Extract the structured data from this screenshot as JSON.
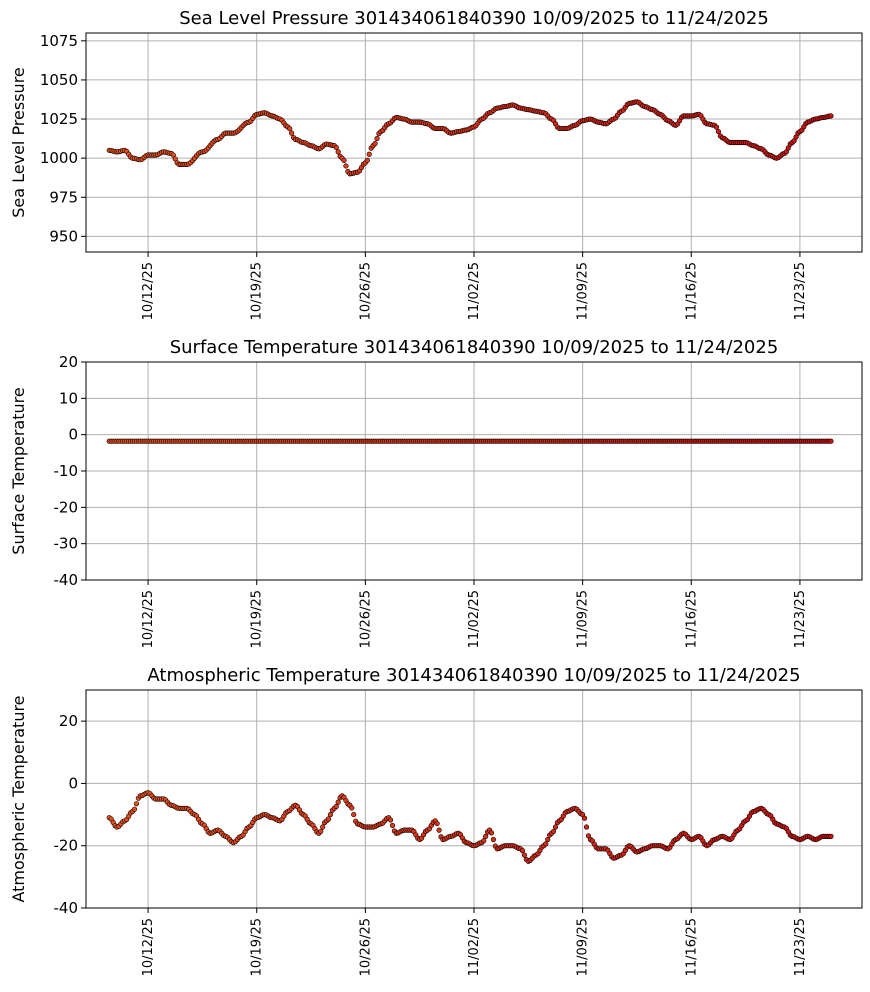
{
  "chart_data": [
    {
      "type": "scatter",
      "title": "Sea Level Pressure 301434061840390  10/09/2025 to 11/24/2025",
      "xlabel": "",
      "ylabel": "Sea Level Pressure",
      "ylim": [
        940,
        1080
      ],
      "yticks": [
        950,
        975,
        1000,
        1025,
        1050,
        1075
      ],
      "xlim": [
        "2025-10-08",
        "2025-11-27"
      ],
      "xticks": [
        "2025-10-12",
        "2025-10-19",
        "2025-10-26",
        "2025-11-02",
        "2025-11-09",
        "2025-11-16",
        "2025-11-23"
      ],
      "xtick_labels": [
        "10/12/25",
        "10/19/25",
        "10/26/25",
        "11/02/25",
        "11/09/25",
        "11/16/25",
        "11/23/25"
      ],
      "grid": true,
      "x_start": "2025-10-09T12:00",
      "x_end": "2025-11-25T00:00",
      "keyframes": [
        [
          "2025-10-09T12:00",
          1005
        ],
        [
          "2025-10-10T00:00",
          1004
        ],
        [
          "2025-10-10T12:00",
          1005
        ],
        [
          "2025-10-11T00:00",
          1000
        ],
        [
          "2025-10-11T12:00",
          999
        ],
        [
          "2025-10-12T00:00",
          1002
        ],
        [
          "2025-10-12T12:00",
          1002
        ],
        [
          "2025-10-13T00:00",
          1004
        ],
        [
          "2025-10-13T12:00",
          1003
        ],
        [
          "2025-10-14T00:00",
          996
        ],
        [
          "2025-10-14T12:00",
          996
        ],
        [
          "2025-10-15T12:00",
          1004
        ],
        [
          "2025-10-16T12:00",
          1012
        ],
        [
          "2025-10-17T00:00",
          1016
        ],
        [
          "2025-10-17T12:00",
          1016
        ],
        [
          "2025-10-18T12:00",
          1023
        ],
        [
          "2025-10-19T00:00",
          1028
        ],
        [
          "2025-10-19T12:00",
          1029
        ],
        [
          "2025-10-20T00:00",
          1027
        ],
        [
          "2025-10-20T12:00",
          1025
        ],
        [
          "2025-10-21T00:00",
          1020
        ],
        [
          "2025-10-21T12:00",
          1012
        ],
        [
          "2025-10-22T00:00",
          1010
        ],
        [
          "2025-10-22T12:00",
          1008
        ],
        [
          "2025-10-23T00:00",
          1006
        ],
        [
          "2025-10-23T12:00",
          1009
        ],
        [
          "2025-10-24T00:00",
          1008
        ],
        [
          "2025-10-24T12:00",
          1000
        ],
        [
          "2025-10-25T00:00",
          990
        ],
        [
          "2025-10-25T12:00",
          991
        ],
        [
          "2025-10-26T00:00",
          997
        ],
        [
          "2025-10-26T12:00",
          1008
        ],
        [
          "2025-10-27T00:00",
          1017
        ],
        [
          "2025-10-27T12:00",
          1022
        ],
        [
          "2025-10-28T00:00",
          1026
        ],
        [
          "2025-10-28T12:00",
          1025
        ],
        [
          "2025-10-29T00:00",
          1023
        ],
        [
          "2025-10-29T12:00",
          1023
        ],
        [
          "2025-10-30T00:00",
          1022
        ],
        [
          "2025-10-30T12:00",
          1019
        ],
        [
          "2025-10-31T00:00",
          1019
        ],
        [
          "2025-10-31T12:00",
          1016
        ],
        [
          "2025-11-01T00:00",
          1017
        ],
        [
          "2025-11-01T12:00",
          1018
        ],
        [
          "2025-11-02T00:00",
          1020
        ],
        [
          "2025-11-02T12:00",
          1025
        ],
        [
          "2025-11-03T00:00",
          1029
        ],
        [
          "2025-11-03T12:00",
          1032
        ],
        [
          "2025-11-04T00:00",
          1033
        ],
        [
          "2025-11-04T12:00",
          1034
        ],
        [
          "2025-11-05T00:00",
          1032
        ],
        [
          "2025-11-05T12:00",
          1031
        ],
        [
          "2025-11-06T00:00",
          1030
        ],
        [
          "2025-11-06T12:00",
          1029
        ],
        [
          "2025-11-07T00:00",
          1025
        ],
        [
          "2025-11-07T12:00",
          1019
        ],
        [
          "2025-11-08T00:00",
          1019
        ],
        [
          "2025-11-08T12:00",
          1021
        ],
        [
          "2025-11-09T00:00",
          1024
        ],
        [
          "2025-11-09T12:00",
          1025
        ],
        [
          "2025-11-10T00:00",
          1023
        ],
        [
          "2025-11-10T12:00",
          1022
        ],
        [
          "2025-11-11T00:00",
          1025
        ],
        [
          "2025-11-11T12:00",
          1030
        ],
        [
          "2025-11-12T00:00",
          1035
        ],
        [
          "2025-11-12T12:00",
          1036
        ],
        [
          "2025-11-13T00:00",
          1033
        ],
        [
          "2025-11-13T12:00",
          1031
        ],
        [
          "2025-11-14T00:00",
          1028
        ],
        [
          "2025-11-14T12:00",
          1024
        ],
        [
          "2025-11-15T00:00",
          1021
        ],
        [
          "2025-11-15T12:00",
          1027
        ],
        [
          "2025-11-16T00:00",
          1027
        ],
        [
          "2025-11-16T12:00",
          1028
        ],
        [
          "2025-11-17T00:00",
          1022
        ],
        [
          "2025-11-17T12:00",
          1021
        ],
        [
          "2025-11-18T00:00",
          1013
        ],
        [
          "2025-11-18T12:00",
          1010
        ],
        [
          "2025-11-19T00:00",
          1010
        ],
        [
          "2025-11-19T12:00",
          1010
        ],
        [
          "2025-11-20T00:00",
          1008
        ],
        [
          "2025-11-20T12:00",
          1006
        ],
        [
          "2025-11-21T00:00",
          1002
        ],
        [
          "2025-11-21T12:00",
          1000
        ],
        [
          "2025-11-22T00:00",
          1003
        ],
        [
          "2025-11-22T12:00",
          1010
        ],
        [
          "2025-11-23T00:00",
          1017
        ],
        [
          "2025-11-23T12:00",
          1023
        ],
        [
          "2025-11-24T00:00",
          1025
        ],
        [
          "2025-11-24T12:00",
          1026
        ],
        [
          "2025-11-25T00:00",
          1027
        ]
      ],
      "marker_fill_start": "#e8521e",
      "marker_fill_end": "#cc1111",
      "marker_edge": "#000000"
    },
    {
      "type": "scatter",
      "title": "Surface Temperature 301434061840390  10/09/2025 to 11/24/2025",
      "xlabel": "",
      "ylabel": "Surface Temperature",
      "ylim": [
        -40,
        20
      ],
      "yticks": [
        -40,
        -30,
        -20,
        -10,
        0,
        10,
        20
      ],
      "xlim": [
        "2025-10-08",
        "2025-11-27"
      ],
      "xticks": [
        "2025-10-12",
        "2025-10-19",
        "2025-10-26",
        "2025-11-02",
        "2025-11-09",
        "2025-11-16",
        "2025-11-23"
      ],
      "xtick_labels": [
        "10/12/25",
        "10/19/25",
        "10/26/25",
        "11/02/25",
        "11/09/25",
        "11/16/25",
        "11/23/25"
      ],
      "grid": true,
      "x_start": "2025-10-09T12:00",
      "x_end": "2025-11-25T00:00",
      "keyframes": [
        [
          "2025-10-09T12:00",
          -1.8
        ],
        [
          "2025-11-25T00:00",
          -1.8
        ]
      ],
      "marker_fill_start": "#e8521e",
      "marker_fill_end": "#cc1111",
      "marker_edge": "#000000"
    },
    {
      "type": "scatter",
      "title": "Atmospheric Temperature 301434061840390  10/09/2025 to 11/24/2025",
      "xlabel": "",
      "ylabel": "Atmospheric Temperature",
      "ylim": [
        -40,
        30
      ],
      "yticks": [
        -40,
        -20,
        0,
        20
      ],
      "xlim": [
        "2025-10-08",
        "2025-11-27"
      ],
      "xticks": [
        "2025-10-12",
        "2025-10-19",
        "2025-10-26",
        "2025-11-02",
        "2025-11-09",
        "2025-11-16",
        "2025-11-23"
      ],
      "xtick_labels": [
        "10/12/25",
        "10/19/25",
        "10/26/25",
        "11/02/25",
        "11/09/25",
        "11/16/25",
        "11/23/25"
      ],
      "grid": true,
      "x_start": "2025-10-09T12:00",
      "x_end": "2025-11-25T00:00",
      "keyframes": [
        [
          "2025-10-09T12:00",
          -11
        ],
        [
          "2025-10-10T00:00",
          -14
        ],
        [
          "2025-10-10T12:00",
          -12
        ],
        [
          "2025-10-11T00:00",
          -9
        ],
        [
          "2025-10-11T12:00",
          -4
        ],
        [
          "2025-10-12T00:00",
          -3
        ],
        [
          "2025-10-12T12:00",
          -5
        ],
        [
          "2025-10-13T00:00",
          -5
        ],
        [
          "2025-10-13T12:00",
          -7
        ],
        [
          "2025-10-14T00:00",
          -8
        ],
        [
          "2025-10-14T12:00",
          -8
        ],
        [
          "2025-10-15T00:00",
          -10
        ],
        [
          "2025-10-15T12:00",
          -13
        ],
        [
          "2025-10-16T00:00",
          -16
        ],
        [
          "2025-10-16T12:00",
          -15
        ],
        [
          "2025-10-17T00:00",
          -17
        ],
        [
          "2025-10-17T12:00",
          -19
        ],
        [
          "2025-10-18T00:00",
          -17
        ],
        [
          "2025-10-18T12:00",
          -14
        ],
        [
          "2025-10-19T00:00",
          -11
        ],
        [
          "2025-10-19T12:00",
          -10
        ],
        [
          "2025-10-20T00:00",
          -11
        ],
        [
          "2025-10-20T12:00",
          -12
        ],
        [
          "2025-10-21T00:00",
          -9
        ],
        [
          "2025-10-21T12:00",
          -7
        ],
        [
          "2025-10-22T00:00",
          -10
        ],
        [
          "2025-10-22T12:00",
          -13
        ],
        [
          "2025-10-23T00:00",
          -16
        ],
        [
          "2025-10-23T12:00",
          -12
        ],
        [
          "2025-10-24T00:00",
          -8
        ],
        [
          "2025-10-24T12:00",
          -4
        ],
        [
          "2025-10-25T00:00",
          -7
        ],
        [
          "2025-10-25T12:00",
          -13
        ],
        [
          "2025-10-26T00:00",
          -14
        ],
        [
          "2025-10-26T12:00",
          -14
        ],
        [
          "2025-10-27T00:00",
          -13
        ],
        [
          "2025-10-27T12:00",
          -11
        ],
        [
          "2025-10-28T00:00",
          -16
        ],
        [
          "2025-10-28T12:00",
          -15
        ],
        [
          "2025-10-29T00:00",
          -15
        ],
        [
          "2025-10-29T12:00",
          -18
        ],
        [
          "2025-10-30T00:00",
          -15
        ],
        [
          "2025-10-30T12:00",
          -12
        ],
        [
          "2025-10-31T00:00",
          -18
        ],
        [
          "2025-10-31T12:00",
          -17
        ],
        [
          "2025-11-01T00:00",
          -16
        ],
        [
          "2025-11-01T12:00",
          -19
        ],
        [
          "2025-11-02T00:00",
          -20
        ],
        [
          "2025-11-02T12:00",
          -19
        ],
        [
          "2025-11-03T00:00",
          -15
        ],
        [
          "2025-11-03T12:00",
          -21
        ],
        [
          "2025-11-04T00:00",
          -20
        ],
        [
          "2025-11-04T12:00",
          -20
        ],
        [
          "2025-11-05T00:00",
          -21
        ],
        [
          "2025-11-05T12:00",
          -25
        ],
        [
          "2025-11-06T00:00",
          -23
        ],
        [
          "2025-11-06T12:00",
          -20
        ],
        [
          "2025-11-07T00:00",
          -16
        ],
        [
          "2025-11-07T12:00",
          -12
        ],
        [
          "2025-11-08T00:00",
          -9
        ],
        [
          "2025-11-08T12:00",
          -8
        ],
        [
          "2025-11-09T00:00",
          -10
        ],
        [
          "2025-11-09T12:00",
          -18
        ],
        [
          "2025-11-10T00:00",
          -21
        ],
        [
          "2025-11-10T12:00",
          -21
        ],
        [
          "2025-11-11T00:00",
          -24
        ],
        [
          "2025-11-11T12:00",
          -23
        ],
        [
          "2025-11-12T00:00",
          -20
        ],
        [
          "2025-11-12T12:00",
          -22
        ],
        [
          "2025-11-13T00:00",
          -21
        ],
        [
          "2025-11-13T12:00",
          -20
        ],
        [
          "2025-11-14T00:00",
          -20
        ],
        [
          "2025-11-14T12:00",
          -21
        ],
        [
          "2025-11-15T00:00",
          -18
        ],
        [
          "2025-11-15T12:00",
          -16
        ],
        [
          "2025-11-16T00:00",
          -18
        ],
        [
          "2025-11-16T12:00",
          -17
        ],
        [
          "2025-11-17T00:00",
          -20
        ],
        [
          "2025-11-17T12:00",
          -18
        ],
        [
          "2025-11-18T00:00",
          -17
        ],
        [
          "2025-11-18T12:00",
          -18
        ],
        [
          "2025-11-19T00:00",
          -15
        ],
        [
          "2025-11-19T12:00",
          -12
        ],
        [
          "2025-11-20T00:00",
          -9
        ],
        [
          "2025-11-20T12:00",
          -8
        ],
        [
          "2025-11-21T00:00",
          -10
        ],
        [
          "2025-11-21T12:00",
          -13
        ],
        [
          "2025-11-22T00:00",
          -14
        ],
        [
          "2025-11-22T12:00",
          -17
        ],
        [
          "2025-11-23T00:00",
          -18
        ],
        [
          "2025-11-23T12:00",
          -17
        ],
        [
          "2025-11-24T00:00",
          -18
        ],
        [
          "2025-11-24T12:00",
          -17
        ],
        [
          "2025-11-25T00:00",
          -17
        ]
      ],
      "marker_fill_start": "#e8521e",
      "marker_fill_end": "#cc1111",
      "marker_edge": "#000000"
    }
  ]
}
